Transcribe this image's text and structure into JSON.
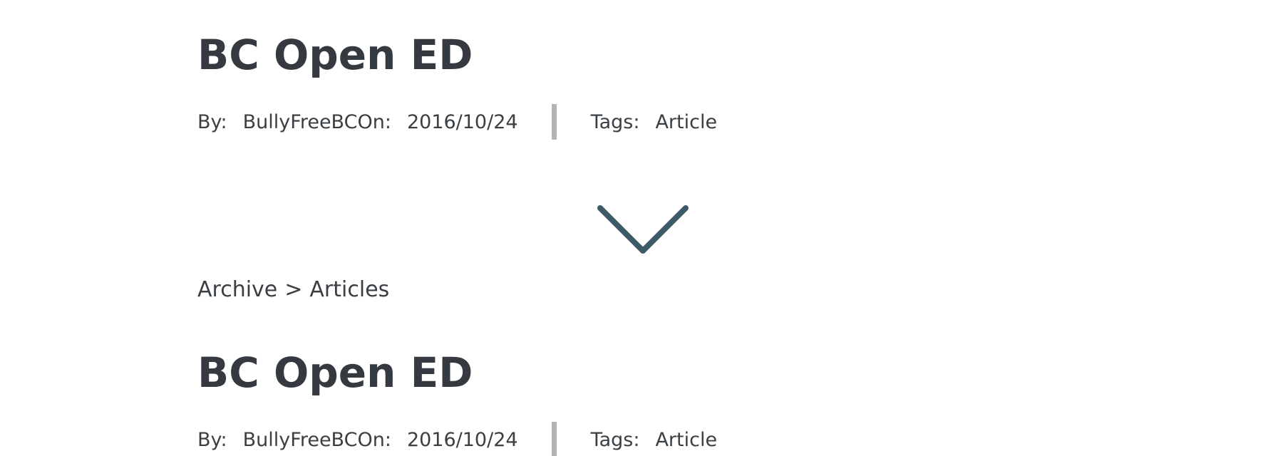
{
  "posts": [
    {
      "title": "BC Open ED",
      "by_label": "By:",
      "author": "BullyFreeBC",
      "on_label": "On:",
      "date": "2016/10/24",
      "tags_label": "Tags:",
      "tag": "Article"
    },
    {
      "title": "BC Open ED",
      "by_label": "By:",
      "author": "BullyFreeBC",
      "on_label": "On:",
      "date": "2016/10/24",
      "tags_label": "Tags:",
      "tag": "Article"
    }
  ],
  "breadcrumb": {
    "archive": "Archive",
    "separator": ">",
    "section": "Articles"
  },
  "icons": {
    "expand": "chevron-down-icon"
  },
  "colors": {
    "text": "#343a40",
    "divider": "#b3b3b3",
    "chevron": "#3d5a69"
  }
}
